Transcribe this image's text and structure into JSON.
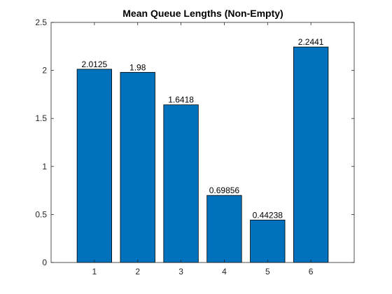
{
  "chart_data": {
    "type": "bar",
    "title": "Mean Queue Lengths (Non-Empty)",
    "xlabel": "",
    "ylabel": "",
    "categories": [
      "1",
      "2",
      "3",
      "4",
      "5",
      "6"
    ],
    "values": [
      2.0125,
      1.98,
      1.6418,
      0.69856,
      0.44238,
      2.2441
    ],
    "data_labels": [
      "2.0125",
      "1.98",
      "1.6418",
      "0.69856",
      "0.44238",
      "2.2441"
    ],
    "xlim": [
      0,
      7
    ],
    "ylim": [
      0,
      2.5
    ],
    "yticks": [
      0,
      0.5,
      1,
      1.5,
      2,
      2.5
    ],
    "ytick_labels": [
      "0",
      "0.5",
      "1",
      "1.5",
      "2",
      "2.5"
    ],
    "grid": false,
    "bar_color": "#0072BD",
    "bar_edge_color": "#000000"
  }
}
